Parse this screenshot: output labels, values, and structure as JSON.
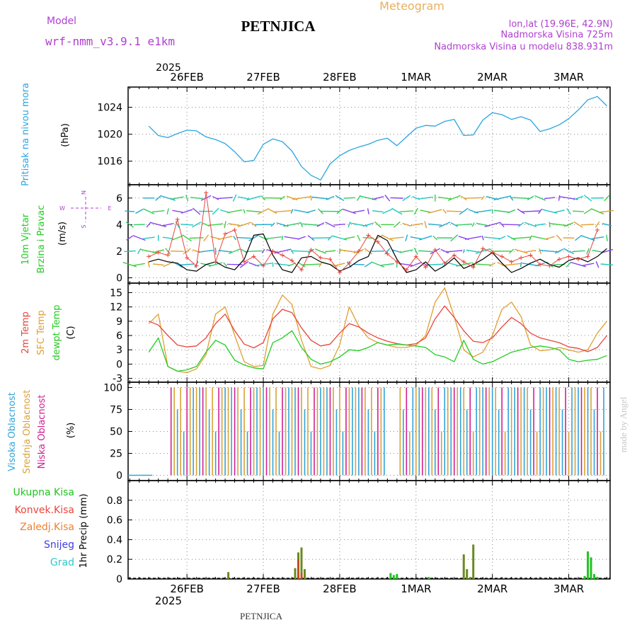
{
  "header": {
    "model_label": "Model",
    "model_name": "wrf-nmm_v3.9.1 e1km",
    "title": "PETNJICA",
    "meteogram": "Meteogram",
    "lonlat": "lon,lat (19.96E, 42.9N)",
    "elevation": "Nadmorska Visina 725m",
    "model_elevation": "Nadmorska Visina u modelu 838.931m"
  },
  "footer": {
    "station": "PETNJICA",
    "credit": "made by Angel"
  },
  "colors": {
    "pressure": "#2aa5e0",
    "temp2m": "#e8453c",
    "sfc": "#e0a030",
    "dewpt": "#22cc22",
    "visoka": "#33a3d8",
    "srednja": "#d8a23a",
    "niska": "#d02090",
    "ukupna": "#22c322",
    "konvek": "#e8453c",
    "zaledj": "#f08030",
    "snijeg": "#4040e0",
    "grad": "#30c8c8",
    "speed": "#e8453c",
    "purple": "#b040d0",
    "grid": "#888888"
  },
  "chart_data": [
    {
      "type": "line",
      "panel": "pressure",
      "ylabel_rotated": "Pritisak na nivou mora",
      "unit": "(hPa)",
      "yticks": [
        1016,
        1020,
        1024
      ],
      "ylim": [
        1012.5,
        1027
      ],
      "x_top_labels": [
        "26FEB",
        "27FEB",
        "28FEB",
        "1MAR",
        "2MAR",
        "3MAR"
      ],
      "x_top_year": "2025",
      "x_hours": [
        0,
        3,
        6,
        9,
        12,
        15,
        18,
        21,
        24,
        27,
        30,
        33,
        36,
        39,
        42,
        45,
        48,
        51,
        54,
        57,
        60,
        63,
        66,
        69,
        72,
        75,
        78,
        81,
        84,
        87,
        90,
        93,
        96,
        99,
        102,
        105,
        108,
        111,
        114,
        117,
        120,
        123,
        126,
        129,
        132,
        135,
        138,
        141,
        144
      ],
      "series": [
        {
          "values": [
            1021.2,
            1019.8,
            1019.5,
            1020.1,
            1020.6,
            1020.5,
            1019.6,
            1019.2,
            1018.6,
            1017.4,
            1015.9,
            1016.1,
            1018.5,
            1019.3,
            1018.9,
            1017.5,
            1015.2,
            1013.9,
            1013.2,
            1015.6,
            1016.8,
            1017.6,
            1018.1,
            1018.5,
            1019.1,
            1019.4,
            1018.3,
            1019.6,
            1020.9,
            1021.3,
            1021.2,
            1021.9,
            1022.2,
            1019.8,
            1019.9,
            1022.1,
            1023.2,
            1022.9,
            1022.2,
            1022.6,
            1022.1,
            1020.4,
            1020.8,
            1021.4,
            1022.3,
            1023.6,
            1025.1,
            1025.6,
            1024.2
          ]
        }
      ]
    },
    {
      "type": "line",
      "panel": "wind",
      "ylabel_rotated": [
        "10m Vjetar",
        "Brzina i Pravac"
      ],
      "unit": "(m/s)",
      "compass": {
        "n": "N",
        "s": "S",
        "e": "E",
        "w": "W"
      },
      "yticks": [
        0,
        2,
        4,
        6
      ],
      "ylim": [
        -0.4,
        7
      ],
      "x_hours": [
        0,
        3,
        6,
        9,
        12,
        15,
        18,
        21,
        24,
        27,
        30,
        33,
        36,
        39,
        42,
        45,
        48,
        51,
        54,
        57,
        60,
        63,
        66,
        69,
        72,
        75,
        78,
        81,
        84,
        87,
        90,
        93,
        96,
        99,
        102,
        105,
        108,
        111,
        114,
        117,
        120,
        123,
        126,
        129,
        132,
        135,
        138,
        141,
        144
      ],
      "series": [
        {
          "name": "speed_mean",
          "values": [
            1.2,
            1.4,
            1.2,
            1.1,
            0.6,
            0.5,
            1.0,
            1.2,
            0.8,
            0.6,
            1.4,
            3.2,
            3.3,
            1.7,
            0.6,
            0.4,
            1.5,
            1.6,
            1.2,
            1.0,
            0.5,
            0.8,
            1.3,
            1.6,
            3.2,
            2.8,
            1.4,
            0.4,
            0.6,
            1.2,
            0.5,
            0.9,
            1.5,
            0.7,
            1.0,
            1.4,
            1.9,
            1.1,
            0.4,
            0.7,
            1.1,
            1.4,
            1.0,
            0.8,
            1.3,
            1.5,
            1.2,
            1.6,
            2.2
          ]
        },
        {
          "name": "speed_gust",
          "values": [
            1.6,
            1.9,
            1.7,
            4.4,
            1.5,
            0.9,
            6.4,
            1.2,
            3.3,
            3.6,
            1.2,
            1.6,
            0.9,
            2.0,
            1.7,
            1.3,
            0.6,
            2.1,
            1.5,
            1.4,
            0.4,
            1.1,
            2.0,
            3.2,
            2.7,
            1.8,
            1.2,
            0.6,
            1.6,
            0.8,
            2.1,
            1.1,
            1.7,
            1.2,
            0.8,
            2.2,
            1.9,
            1.6,
            1.2,
            1.5,
            1.7,
            1.0,
            0.9,
            1.4,
            1.6,
            1.4,
            1.6,
            3.6
          ]
        }
      ]
    },
    {
      "type": "line",
      "panel": "temperature",
      "ylabel_rotated": [
        "2m Temp",
        "SFC Temp",
        "dewpt Temp"
      ],
      "unit": "(C)",
      "yticks": [
        -3,
        0,
        3,
        6,
        9,
        12,
        15
      ],
      "ylim": [
        -3.8,
        17
      ],
      "x_hours": [
        0,
        3,
        6,
        9,
        12,
        15,
        18,
        21,
        24,
        27,
        30,
        33,
        36,
        39,
        42,
        45,
        48,
        51,
        54,
        57,
        60,
        63,
        66,
        69,
        72,
        75,
        78,
        81,
        84,
        87,
        90,
        93,
        96,
        99,
        102,
        105,
        108,
        111,
        114,
        117,
        120,
        123,
        126,
        129,
        132,
        135,
        138,
        141,
        144
      ],
      "series": [
        {
          "name": "2m Temp",
          "values": [
            9.0,
            8.2,
            6.0,
            4.0,
            3.6,
            3.8,
            5.5,
            8.5,
            10.5,
            7.0,
            4.2,
            3.4,
            4.5,
            9.5,
            11.5,
            10.8,
            7.6,
            5.0,
            3.8,
            4.2,
            6.5,
            8.5,
            7.8,
            6.5,
            5.5,
            4.8,
            4.3,
            4.0,
            4.3,
            5.5,
            9.5,
            12.2,
            9.8,
            7.0,
            4.8,
            4.5,
            5.5,
            7.8,
            9.8,
            8.5,
            6.5,
            5.5,
            5.0,
            4.5,
            3.6,
            3.3,
            2.6,
            3.5,
            6.0
          ]
        },
        {
          "name": "SFC Temp",
          "values": [
            8.5,
            10.5,
            -0.5,
            -1.5,
            -1.8,
            -1.0,
            2.0,
            10.5,
            12.0,
            6.0,
            0.5,
            -0.5,
            -0.3,
            10.5,
            14.5,
            12.5,
            5.0,
            -0.5,
            -1.0,
            -0.3,
            4.0,
            12.0,
            8.0,
            5.5,
            4.5,
            4.0,
            3.5,
            3.5,
            4.0,
            6.0,
            13.0,
            16.0,
            10.0,
            3.0,
            1.5,
            2.5,
            6.0,
            11.5,
            13.0,
            10.0,
            4.0,
            2.8,
            3.0,
            3.5,
            3.0,
            2.5,
            3.0,
            6.5,
            9.0
          ]
        },
        {
          "name": "dewpt Temp",
          "values": [
            2.5,
            5.5,
            -0.5,
            -1.5,
            -1.2,
            -0.5,
            2.5,
            5.0,
            4.0,
            0.8,
            -0.2,
            -0.8,
            -1.0,
            4.5,
            5.5,
            7.0,
            3.5,
            1.0,
            0.0,
            0.5,
            1.5,
            3.0,
            2.8,
            3.5,
            4.5,
            4.0,
            4.2,
            4.0,
            3.8,
            3.5,
            2.0,
            1.5,
            0.5,
            5.0,
            1.0,
            0.0,
            0.5,
            1.5,
            2.5,
            3.0,
            3.5,
            3.8,
            3.5,
            3.0,
            1.0,
            0.5,
            0.8,
            1.0,
            1.8
          ]
        }
      ]
    },
    {
      "type": "bar",
      "panel": "cloud",
      "ylabel_rotated": [
        "Visoka Oblacnost",
        "Srednja Oblacnost",
        "Niska Oblacnost"
      ],
      "unit": "(%)",
      "yticks": [
        0,
        25,
        50,
        75,
        100
      ],
      "ylim": [
        -6,
        106
      ],
      "series": [
        {
          "name": "Visoka Oblacnost",
          "description": "near 100% across hours ~5-74 and ~80-136, mostly 0 elsewhere"
        },
        {
          "name": "Srednja Oblacnost",
          "description": "near 100% across hours ~5-74 and ~80-143"
        },
        {
          "name": "Niska Oblacnost",
          "description": "intermittent 0-100%"
        }
      ],
      "bands": [
        {
          "start_hour": 7,
          "end_hour": 74,
          "level": 100
        },
        {
          "start_hour": 79,
          "end_hour": 143,
          "level": 100
        }
      ]
    },
    {
      "type": "bar",
      "panel": "precip",
      "ylabel_rotated": "1hr Precip (mm)",
      "legend": [
        "Ukupna Kisa",
        "Konvek.Kisa",
        "Zaledj.Kisa",
        "Snijeg",
        "Grad"
      ],
      "yticks": [
        0,
        0.2,
        0.4,
        0.6,
        0.8
      ],
      "ylim": [
        0,
        1.0
      ],
      "x_bottom_labels": [
        "26FEB",
        "27FEB",
        "28FEB",
        "1MAR",
        "2MAR",
        "3MAR"
      ],
      "x_bottom_year": "2025",
      "bars": [
        {
          "hour": 25,
          "ukupna": 0.07,
          "konvek": 0
        },
        {
          "hour": 46,
          "ukupna": 0.11,
          "konvek": 0.11
        },
        {
          "hour": 47,
          "ukupna": 0.27,
          "konvek": 0.2
        },
        {
          "hour": 48,
          "ukupna": 0.32,
          "konvek": 0.06
        },
        {
          "hour": 49,
          "ukupna": 0.1,
          "konvek": 0.1
        },
        {
          "hour": 76,
          "ukupna": 0.06,
          "konvek": 0
        },
        {
          "hour": 77,
          "ukupna": 0.04,
          "konvek": 0
        },
        {
          "hour": 78,
          "ukupna": 0.05,
          "konvek": 0
        },
        {
          "hour": 88,
          "ukupna": 0.02,
          "konvek": 0
        },
        {
          "hour": 99,
          "ukupna": 0.25,
          "konvek": 0.25
        },
        {
          "hour": 100,
          "ukupna": 0.1,
          "konvek": 0.1
        },
        {
          "hour": 101,
          "ukupna": 0.02,
          "konvek": 0
        },
        {
          "hour": 102,
          "ukupna": 0.35,
          "konvek": 0.0
        },
        {
          "hour": 137,
          "ukupna": 0.03,
          "konvek": 0
        },
        {
          "hour": 138,
          "ukupna": 0.28,
          "konvek": 0
        },
        {
          "hour": 139,
          "ukupna": 0.22,
          "konvek": 0
        },
        {
          "hour": 140,
          "ukupna": 0.05,
          "konvek": 0
        },
        {
          "hour": 141,
          "ukupna": 0.02,
          "konvek": 0
        }
      ]
    }
  ]
}
